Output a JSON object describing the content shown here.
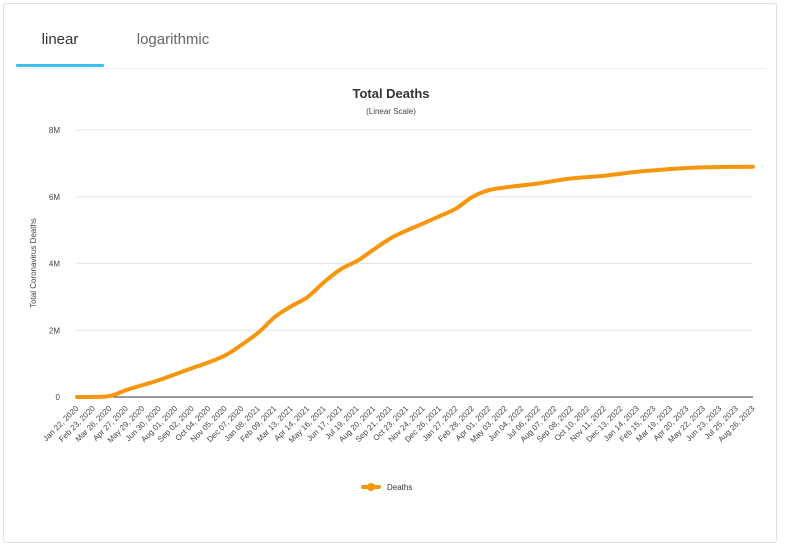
{
  "tabs": [
    {
      "label": "linear",
      "active": true
    },
    {
      "label": "logarithmic",
      "active": false
    }
  ],
  "colors": {
    "accent": "#3ec0ef",
    "series": "#f7960c",
    "grid": "#e6e6e6"
  },
  "chart_data": {
    "type": "line",
    "title": "Total Deaths",
    "subtitle": "(Linear Scale)",
    "ylabel": "Total Coronavirus Deaths",
    "xlabel": "",
    "ylim": [
      0,
      8000000
    ],
    "y_ticks": [
      0,
      2000000,
      4000000,
      6000000,
      8000000
    ],
    "y_tick_labels": [
      "0",
      "2M",
      "4M",
      "6M",
      "8M"
    ],
    "grid": true,
    "legend_position": "bottom-center",
    "categories": [
      "Jan 22, 2020",
      "Feb 23, 2020",
      "Mar 26, 2020",
      "Apr 27, 2020",
      "May 29, 2020",
      "Jun 30, 2020",
      "Aug 01, 2020",
      "Sep 02, 2020",
      "Oct 04, 2020",
      "Nov 05, 2020",
      "Dec 07, 2020",
      "Jan 08, 2021",
      "Feb 09, 2021",
      "Mar 13, 2021",
      "Apr 14, 2021",
      "May 16, 2021",
      "Jun 17, 2021",
      "Jul 19, 2021",
      "Aug 20, 2021",
      "Sep 21, 2021",
      "Oct 23, 2021",
      "Nov 24, 2021",
      "Dec 26, 2021",
      "Jan 27, 2022",
      "Feb 28, 2022",
      "Apr 01, 2022",
      "May 03, 2022",
      "Jun 04, 2022",
      "Jul 06, 2022",
      "Aug 07, 2022",
      "Sep 08, 2022",
      "Oct 10, 2022",
      "Nov 11, 2022",
      "Dec 13, 2022",
      "Jan 14, 2023",
      "Feb 15, 2023",
      "Mar 19, 2023",
      "Apr 20, 2023",
      "May 22, 2023",
      "Jun 23, 2023",
      "Jul 25, 2023",
      "Aug 26, 2023"
    ],
    "series": [
      {
        "name": "Deaths",
        "color": "#f7960c",
        "values": [
          20,
          2800,
          30000,
          210000,
          360000,
          510000,
          690000,
          870000,
          1040000,
          1250000,
          1570000,
          1930000,
          2400000,
          2720000,
          3000000,
          3450000,
          3830000,
          4080000,
          4420000,
          4750000,
          4990000,
          5200000,
          5420000,
          5650000,
          6000000,
          6200000,
          6280000,
          6340000,
          6400000,
          6480000,
          6550000,
          6590000,
          6630000,
          6690000,
          6750000,
          6790000,
          6830000,
          6860000,
          6880000,
          6890000,
          6895000,
          6900000
        ]
      }
    ]
  }
}
